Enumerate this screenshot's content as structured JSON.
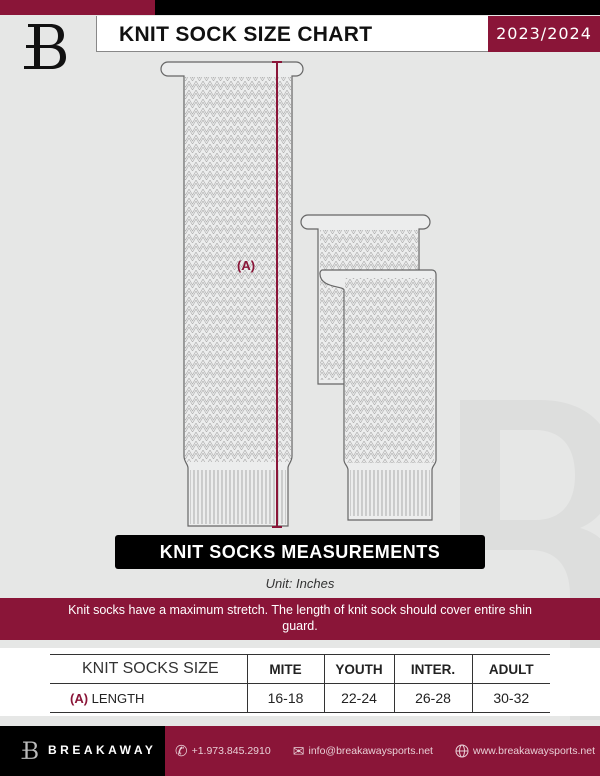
{
  "header": {
    "title": "KNIT SOCK SIZE CHART",
    "season": "2023/2024"
  },
  "diagram": {
    "measure_label": "(A)",
    "accent_color": "#8a1538"
  },
  "banner": {
    "title": "KNIT SOCKS MEASUREMENTS",
    "unit": "Unit: Inches"
  },
  "note": "Knit socks have a maximum stretch. The length of knit sock should cover entire shin guard.",
  "table": {
    "header": [
      "KNIT SOCKS SIZE",
      "MITE",
      "YOUTH",
      "INTER.",
      "ADULT"
    ],
    "rows": [
      {
        "code": "(A)",
        "label": "LENGTH",
        "values": [
          "16-18",
          "22-24",
          "26-28",
          "30-32"
        ]
      }
    ]
  },
  "footer": {
    "brand": "BREAKAWAY",
    "phone": "+1.973.845.2910",
    "email": "info@breakawaysports.net",
    "website": "www.breakawaysports.net",
    "icons": [
      "phone-icon",
      "mail-icon",
      "globe-icon"
    ]
  },
  "colors": {
    "brand": "#8a1538",
    "background": "#e6e7e6"
  }
}
